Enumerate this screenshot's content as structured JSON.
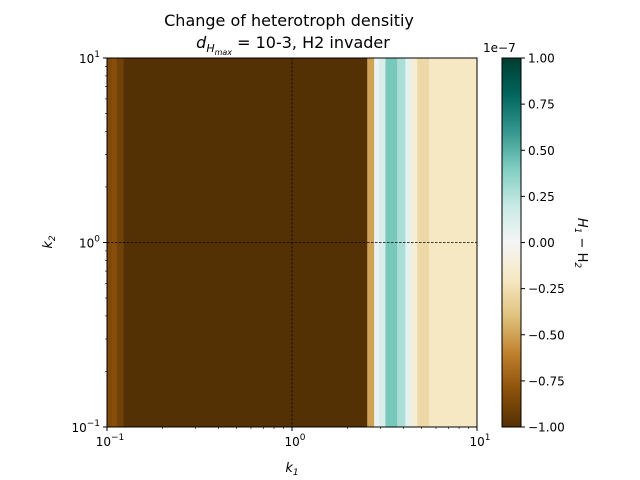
{
  "chart_data": {
    "type": "heatmap",
    "title_line1": "Change of heterotroph densitiy",
    "title_line2_prefix": "d",
    "title_line2_sub": "H",
    "title_line2_subsub": "max",
    "title_line2_suffix": " = 10-3, H2 invader",
    "xlabel": "k",
    "xlabel_sub": "1",
    "ylabel": "k",
    "ylabel_sub": "2",
    "x_scale": "log",
    "y_scale": "log",
    "xlim": [
      0.1,
      10
    ],
    "ylim": [
      0.1,
      10
    ],
    "x_ticks": [
      {
        "value": 0.1,
        "base": "10",
        "exp": "−1"
      },
      {
        "value": 1,
        "base": "10",
        "exp": "0"
      },
      {
        "value": 10,
        "base": "10",
        "exp": "1"
      }
    ],
    "y_ticks": [
      {
        "value": 0.1,
        "base": "10",
        "exp": "−1"
      },
      {
        "value": 1,
        "base": "10",
        "exp": "0"
      },
      {
        "value": 10,
        "base": "10",
        "exp": "1"
      }
    ],
    "grid": true,
    "colorbar": {
      "label": "H",
      "label_sub1": "1",
      "label_mid": " − H",
      "label_sub2": "2",
      "offset_text": "1e−7",
      "vmin": -1.0,
      "vmax": 1.0,
      "ticks": [
        "1.00",
        "0.75",
        "0.50",
        "0.25",
        "0.00",
        "−0.25",
        "−0.50",
        "−0.75",
        "−1.00"
      ],
      "tick_values": [
        1.0,
        0.75,
        0.5,
        0.25,
        0.0,
        -0.25,
        -0.5,
        -0.75,
        -1.0
      ],
      "colormap": "BrBG",
      "stops": [
        "#543005",
        "#8c510a",
        "#bf812d",
        "#dfc27d",
        "#f6e8c3",
        "#f5f5f5",
        "#c7eae5",
        "#80cdc1",
        "#35978f",
        "#01665e",
        "#003c30"
      ]
    },
    "columns": [
      {
        "k1_from": 0.1,
        "k1_to": 0.106,
        "value": -0.85
      },
      {
        "k1_from": 0.106,
        "k1_to": 0.113,
        "value": -0.82
      },
      {
        "k1_from": 0.113,
        "k1_to": 0.123,
        "value": -0.9
      },
      {
        "k1_from": 0.123,
        "k1_to": 2.55,
        "value": -1.0
      },
      {
        "k1_from": 2.55,
        "k1_to": 2.78,
        "value": -0.5
      },
      {
        "k1_from": 2.78,
        "k1_to": 2.95,
        "value": 0.05
      },
      {
        "k1_from": 2.95,
        "k1_to": 3.2,
        "value": 0.12
      },
      {
        "k1_from": 3.2,
        "k1_to": 3.7,
        "value": 0.42
      },
      {
        "k1_from": 3.7,
        "k1_to": 4.1,
        "value": 0.28
      },
      {
        "k1_from": 4.1,
        "k1_to": 4.4,
        "value": 0.08
      },
      {
        "k1_from": 4.4,
        "k1_to": 4.75,
        "value": -0.12
      },
      {
        "k1_from": 4.75,
        "k1_to": 5.5,
        "value": -0.28
      },
      {
        "k1_from": 5.5,
        "k1_to": 10,
        "value": -0.2
      }
    ]
  }
}
